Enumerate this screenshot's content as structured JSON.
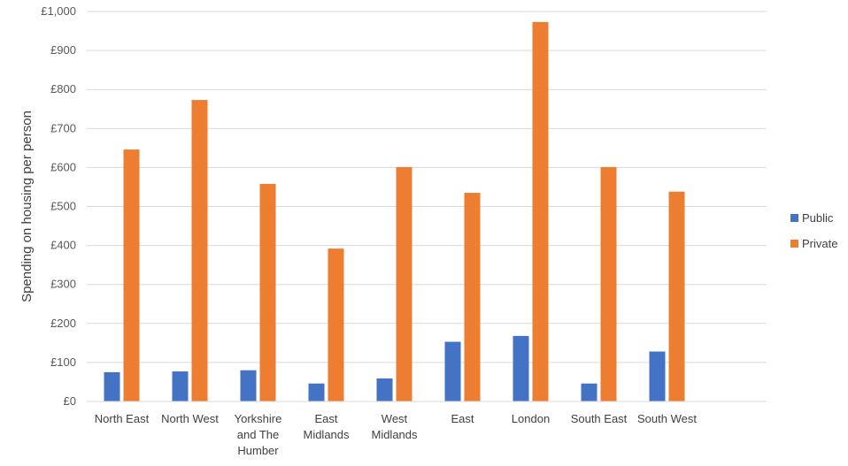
{
  "chart_data": {
    "type": "bar",
    "title": "",
    "xlabel": "",
    "ylabel": "Spending on housing per person",
    "ylim": [
      0,
      1000
    ],
    "yticks": [
      0,
      100,
      200,
      300,
      400,
      500,
      600,
      700,
      800,
      900,
      1000
    ],
    "ytick_labels": [
      "£0",
      "£100",
      "£200",
      "£300",
      "£400",
      "£500",
      "£600",
      "£700",
      "£800",
      "£900",
      "£1,000"
    ],
    "grid": true,
    "legend_position": "right",
    "categories": [
      [
        "North East"
      ],
      [
        "North West"
      ],
      [
        "Yorkshire",
        "and The",
        "Humber"
      ],
      [
        "East",
        "Midlands"
      ],
      [
        "West",
        "Midlands"
      ],
      [
        "East"
      ],
      [
        "London"
      ],
      [
        "South East"
      ],
      [
        "South West"
      ]
    ],
    "series": [
      {
        "name": "Public",
        "color": "#4472C4",
        "values": [
          75,
          77,
          80,
          46,
          59,
          153,
          168,
          46,
          128
        ]
      },
      {
        "name": "Private",
        "color": "#ED7D31",
        "values": [
          646,
          773,
          558,
          392,
          601,
          535,
          973,
          601,
          538
        ]
      }
    ]
  }
}
